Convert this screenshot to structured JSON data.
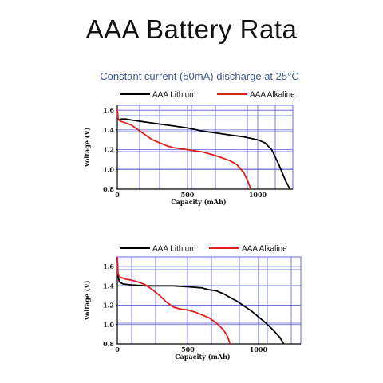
{
  "title": "AAA Battery Rata",
  "subtitle": "Constant current (50mA) discharge at 25°C",
  "colors": {
    "lithium": "#000000",
    "alkaline": "#e0201b",
    "grid": "#5b5bd6"
  },
  "chart_data": [
    {
      "type": "line",
      "xlabel": "Capacity (mAh)",
      "ylabel": "Voltage (V)",
      "xlim": [
        0,
        1250
      ],
      "ylim": [
        0.8,
        1.65
      ],
      "xticks": [
        0,
        500,
        1000
      ],
      "yticks": [
        0.8,
        1.0,
        1.2,
        1.4,
        1.6
      ],
      "grid": true,
      "legend": "top",
      "series": [
        {
          "name": "AAA Lithium",
          "color": "#000000",
          "points": [
            [
              0,
              1.5
            ],
            [
              30,
              1.51
            ],
            [
              60,
              1.51
            ],
            [
              100,
              1.5
            ],
            [
              200,
              1.48
            ],
            [
              300,
              1.46
            ],
            [
              400,
              1.44
            ],
            [
              500,
              1.42
            ],
            [
              600,
              1.39
            ],
            [
              700,
              1.37
            ],
            [
              800,
              1.35
            ],
            [
              900,
              1.33
            ],
            [
              1000,
              1.3
            ],
            [
              1050,
              1.27
            ],
            [
              1100,
              1.2
            ],
            [
              1150,
              1.05
            ],
            [
              1200,
              0.88
            ],
            [
              1230,
              0.8
            ]
          ]
        },
        {
          "name": "AAA Alkaline",
          "color": "#e0201b",
          "points": [
            [
              0,
              1.62
            ],
            [
              5,
              1.52
            ],
            [
              20,
              1.49
            ],
            [
              60,
              1.47
            ],
            [
              100,
              1.45
            ],
            [
              150,
              1.4
            ],
            [
              200,
              1.35
            ],
            [
              250,
              1.3
            ],
            [
              300,
              1.27
            ],
            [
              350,
              1.24
            ],
            [
              400,
              1.22
            ],
            [
              500,
              1.2
            ],
            [
              600,
              1.18
            ],
            [
              700,
              1.14
            ],
            [
              800,
              1.09
            ],
            [
              850,
              1.05
            ],
            [
              900,
              0.97
            ],
            [
              930,
              0.88
            ],
            [
              950,
              0.8
            ]
          ]
        }
      ]
    },
    {
      "type": "line",
      "xlabel": "Capacity (mAh)",
      "ylabel": "Voltage (V)",
      "xlim": [
        0,
        1300
      ],
      "ylim": [
        0.8,
        1.7
      ],
      "xticks": [
        0,
        500,
        1000
      ],
      "yticks": [
        0.8,
        1.0,
        1.2,
        1.4,
        1.6
      ],
      "grid": true,
      "legend": "top",
      "series": [
        {
          "name": "AAA Lithium",
          "color": "#000000",
          "points": [
            [
              0,
              1.7
            ],
            [
              5,
              1.5
            ],
            [
              15,
              1.44
            ],
            [
              40,
              1.42
            ],
            [
              100,
              1.41
            ],
            [
              200,
              1.4
            ],
            [
              300,
              1.4
            ],
            [
              400,
              1.4
            ],
            [
              500,
              1.39
            ],
            [
              600,
              1.38
            ],
            [
              650,
              1.36
            ],
            [
              700,
              1.35
            ],
            [
              750,
              1.32
            ],
            [
              800,
              1.28
            ],
            [
              850,
              1.24
            ],
            [
              900,
              1.19
            ],
            [
              950,
              1.14
            ],
            [
              1000,
              1.08
            ],
            [
              1050,
              1.02
            ],
            [
              1100,
              0.95
            ],
            [
              1150,
              0.87
            ],
            [
              1180,
              0.8
            ]
          ]
        },
        {
          "name": "AAA Alkaline",
          "color": "#e0201b",
          "points": [
            [
              0,
              1.7
            ],
            [
              5,
              1.52
            ],
            [
              20,
              1.49
            ],
            [
              60,
              1.47
            ],
            [
              100,
              1.46
            ],
            [
              150,
              1.44
            ],
            [
              200,
              1.41
            ],
            [
              250,
              1.36
            ],
            [
              300,
              1.3
            ],
            [
              350,
              1.23
            ],
            [
              400,
              1.18
            ],
            [
              450,
              1.16
            ],
            [
              500,
              1.15
            ],
            [
              550,
              1.13
            ],
            [
              600,
              1.1
            ],
            [
              650,
              1.07
            ],
            [
              700,
              1.02
            ],
            [
              750,
              0.95
            ],
            [
              780,
              0.88
            ],
            [
              800,
              0.8
            ]
          ]
        }
      ]
    }
  ]
}
